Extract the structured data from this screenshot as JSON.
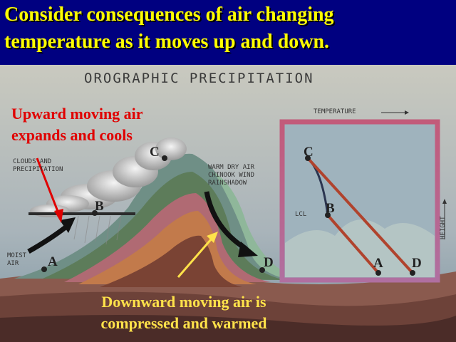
{
  "slide": {
    "title_line1": "Consider consequences of air changing",
    "title_line2": "temperature as it moves up and down."
  },
  "diagram": {
    "title": "OROGRAPHIC PRECIPITATION",
    "captions": {
      "upward_line1": "Upward moving air",
      "upward_line2": "expands and cools",
      "downward_line1": "Downward moving air is",
      "downward_line2": "compressed and warmed"
    },
    "labels": {
      "clouds_line1": "CLOUDS AND",
      "clouds_line2": "PRECIPITATION",
      "warm_line1": "WARM DRY AIR",
      "warm_line2": "CHINOOK WIND",
      "warm_line3": "RAINSHADOW",
      "moist_line1": "MOIST",
      "moist_line2": "AIR",
      "temperature": "TEMPERATURE",
      "height": "HEIGHT",
      "lcl": "LCL"
    },
    "points": {
      "a": "A",
      "b": "B",
      "c": "C",
      "d": "D",
      "graph_a": "A",
      "graph_b": "B",
      "graph_c": "C",
      "graph_d": "D"
    },
    "colors": {
      "title_yellow": "#FFFF00",
      "background_navy": "#000080",
      "caption_red": "#E00000",
      "caption_yellow": "#FFE24A"
    }
  }
}
